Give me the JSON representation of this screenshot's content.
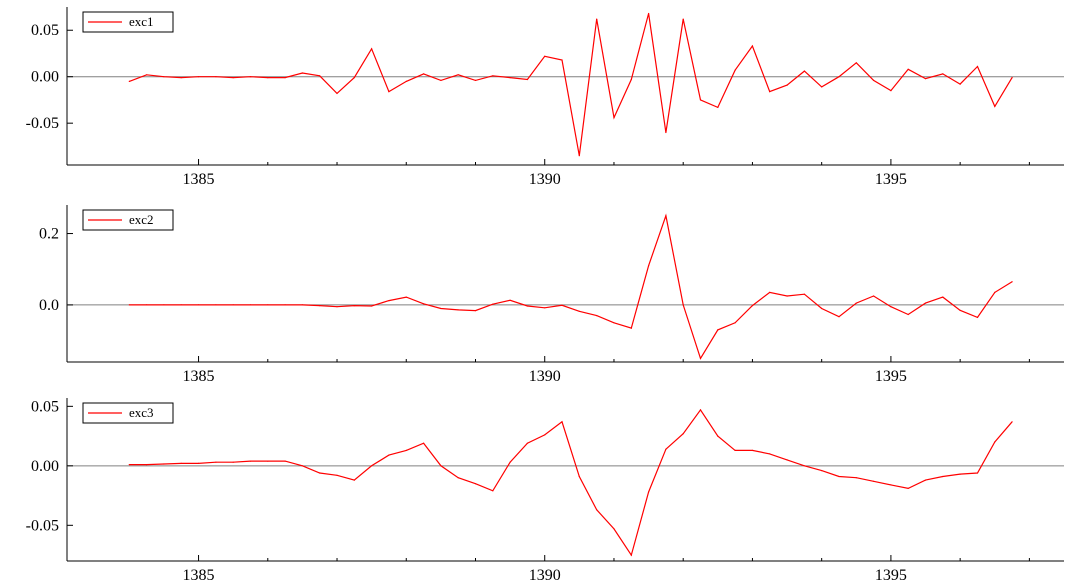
{
  "chart_data": [
    {
      "type": "line",
      "legend": "exc1",
      "legend_position": "top-left",
      "series": [
        {
          "name": "exc1",
          "color": "#ff0000",
          "x": [
            1384.0,
            1384.25,
            1384.5,
            1384.75,
            1385.0,
            1385.25,
            1385.5,
            1385.75,
            1386.0,
            1386.25,
            1386.5,
            1386.75,
            1387.0,
            1387.25,
            1387.5,
            1387.75,
            1388.0,
            1388.25,
            1388.5,
            1388.75,
            1389.0,
            1389.25,
            1389.5,
            1389.75,
            1390.0,
            1390.25,
            1390.5,
            1390.75,
            1391.0,
            1391.25,
            1391.5,
            1391.75,
            1392.0,
            1392.25,
            1392.5,
            1392.75,
            1393.0,
            1393.25,
            1393.5,
            1393.75,
            1394.0,
            1394.25,
            1394.5,
            1394.75,
            1395.0,
            1395.25,
            1395.5,
            1395.75,
            1396.0,
            1396.25,
            1396.5,
            1396.75
          ],
          "y": [
            -0.005,
            0.002,
            0.0,
            -0.001,
            0.0,
            0.0,
            -0.001,
            0.0,
            -0.001,
            -0.001,
            0.004,
            0.001,
            -0.018,
            -0.001,
            0.03,
            -0.016,
            -0.005,
            0.003,
            -0.004,
            0.002,
            -0.004,
            0.001,
            -0.001,
            -0.003,
            0.022,
            0.018,
            -0.085,
            0.062,
            -0.044,
            -0.003,
            0.068,
            -0.06,
            0.062,
            -0.025,
            -0.033,
            0.007,
            0.033,
            -0.016,
            -0.009,
            0.006,
            -0.011,
            0.0,
            0.015,
            -0.004,
            -0.015,
            0.008,
            -0.002,
            0.003,
            -0.008,
            0.011,
            -0.032,
            -0.001
          ]
        }
      ],
      "xlim": [
        1383.1,
        1397.5
      ],
      "ylim": [
        -0.095,
        0.075
      ],
      "xticks": [
        1385,
        1390,
        1395
      ],
      "xtick_labels": [
        "1385",
        "1390",
        "1395"
      ],
      "yticks": [
        0.05,
        0.0,
        -0.05
      ],
      "ytick_labels": [
        "0.05",
        "0.00",
        "-0.05"
      ],
      "zero_line": true,
      "grid": false
    },
    {
      "type": "line",
      "legend": "exc2",
      "legend_position": "top-left",
      "series": [
        {
          "name": "exc2",
          "color": "#ff0000",
          "x": [
            1384.0,
            1384.25,
            1384.5,
            1384.75,
            1385.0,
            1385.25,
            1385.5,
            1385.75,
            1386.0,
            1386.25,
            1386.5,
            1386.75,
            1387.0,
            1387.25,
            1387.5,
            1387.75,
            1388.0,
            1388.25,
            1388.5,
            1388.75,
            1389.0,
            1389.25,
            1389.5,
            1389.75,
            1390.0,
            1390.25,
            1390.5,
            1390.75,
            1391.0,
            1391.25,
            1391.5,
            1391.75,
            1392.0,
            1392.25,
            1392.5,
            1392.75,
            1393.0,
            1393.25,
            1393.5,
            1393.75,
            1394.0,
            1394.25,
            1394.5,
            1394.75,
            1395.0,
            1395.25,
            1395.5,
            1395.75,
            1396.0,
            1396.25,
            1396.5,
            1396.75
          ],
          "y": [
            0.0,
            0.0,
            0.0,
            0.0,
            0.0,
            0.0,
            0.0,
            0.0,
            0.0,
            0.0,
            0.0,
            -0.002,
            -0.005,
            -0.002,
            -0.003,
            0.012,
            0.022,
            0.003,
            -0.01,
            -0.014,
            -0.016,
            0.002,
            0.013,
            -0.003,
            -0.008,
            -0.001,
            -0.018,
            -0.03,
            -0.05,
            -0.065,
            0.11,
            0.25,
            0.0,
            -0.15,
            -0.07,
            -0.05,
            -0.002,
            0.035,
            0.025,
            0.03,
            -0.01,
            -0.033,
            0.005,
            0.025,
            -0.005,
            -0.027,
            0.005,
            0.022,
            -0.015,
            -0.035,
            0.035,
            0.065
          ]
        }
      ],
      "xlim": [
        1383.1,
        1397.5
      ],
      "ylim": [
        -0.16,
        0.28
      ],
      "xticks": [
        1385,
        1390,
        1395
      ],
      "xtick_labels": [
        "1385",
        "1390",
        "1395"
      ],
      "yticks": [
        0.2,
        0.0
      ],
      "ytick_labels": [
        "0.2",
        "0.0"
      ],
      "zero_line": true,
      "grid": false
    },
    {
      "type": "line",
      "legend": "exc3",
      "legend_position": "top-left",
      "series": [
        {
          "name": "exc3",
          "color": "#ff0000",
          "x": [
            1384.0,
            1384.25,
            1384.5,
            1384.75,
            1385.0,
            1385.25,
            1385.5,
            1385.75,
            1386.0,
            1386.25,
            1386.5,
            1386.75,
            1387.0,
            1387.25,
            1387.5,
            1387.75,
            1388.0,
            1388.25,
            1388.5,
            1388.75,
            1389.0,
            1389.25,
            1389.5,
            1389.75,
            1390.0,
            1390.25,
            1390.5,
            1390.75,
            1391.0,
            1391.25,
            1391.5,
            1391.75,
            1392.0,
            1392.25,
            1392.5,
            1392.75,
            1393.0,
            1393.25,
            1393.5,
            1393.75,
            1394.0,
            1394.25,
            1394.5,
            1394.75,
            1395.0,
            1395.25,
            1395.5,
            1395.75,
            1396.0,
            1396.25,
            1396.5,
            1396.75
          ],
          "y": [
            0.001,
            0.001,
            0.0015,
            0.002,
            0.002,
            0.003,
            0.003,
            0.004,
            0.004,
            0.004,
            0.0,
            -0.006,
            -0.008,
            -0.012,
            0.0,
            0.009,
            0.013,
            0.019,
            0.0,
            -0.01,
            -0.015,
            -0.021,
            0.003,
            0.019,
            0.026,
            0.037,
            -0.009,
            -0.037,
            -0.053,
            -0.075,
            -0.022,
            0.014,
            0.027,
            0.047,
            0.025,
            0.013,
            0.013,
            0.01,
            0.005,
            0.0,
            -0.004,
            -0.009,
            -0.01,
            -0.013,
            -0.016,
            -0.019,
            -0.012,
            -0.009,
            -0.007,
            -0.006,
            0.02,
            0.037
          ]
        }
      ],
      "xlim": [
        1383.1,
        1397.5
      ],
      "ylim": [
        -0.08,
        0.057
      ],
      "xticks": [
        1385,
        1390,
        1395
      ],
      "xtick_labels": [
        "1385",
        "1390",
        "1395"
      ],
      "yticks": [
        0.05,
        0.0,
        -0.05
      ],
      "ytick_labels": [
        "0.05",
        "0.00",
        "-0.05"
      ],
      "zero_line": true,
      "grid": false
    }
  ]
}
